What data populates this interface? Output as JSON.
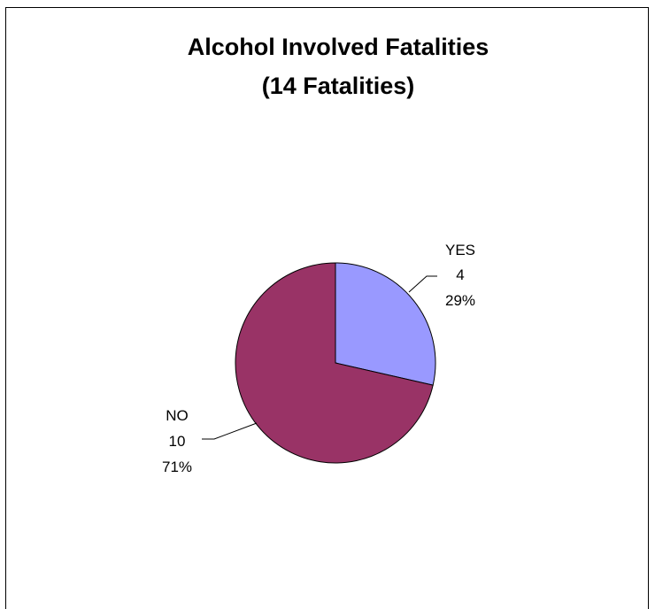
{
  "chart_data": {
    "type": "pie",
    "title": [
      "Alcohol Involved Fatalities",
      "(14 Fatalities)"
    ],
    "slices": [
      {
        "label": "YES",
        "value": 4,
        "percent": "29%",
        "color": "#9999FF"
      },
      {
        "label": "NO",
        "value": 10,
        "percent": "71%",
        "color": "#993366"
      }
    ],
    "start_angle_deg": 0,
    "direction": "clockwise",
    "legend": "none"
  }
}
